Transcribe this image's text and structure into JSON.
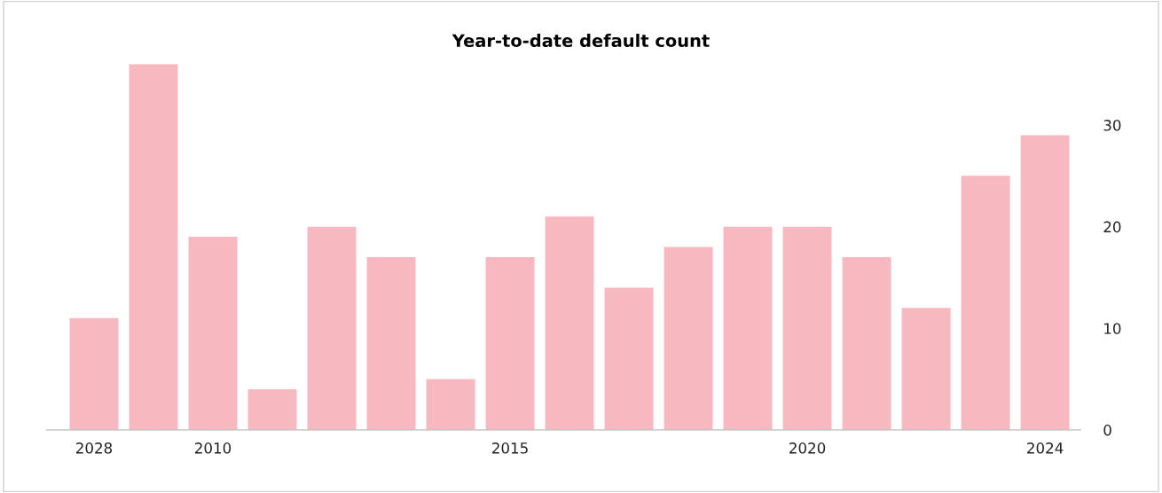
{
  "chart_data": {
    "type": "bar",
    "title": "Year-to-date default count",
    "categories": [
      "2028",
      null,
      "2010",
      null,
      null,
      null,
      null,
      "2015",
      null,
      null,
      null,
      null,
      "2020",
      null,
      null,
      null,
      "2024"
    ],
    "values": [
      11,
      36,
      19,
      4,
      20,
      17,
      5,
      17,
      21,
      14,
      18,
      20,
      20,
      17,
      12,
      25,
      29
    ],
    "color": "#f8b8c0",
    "ylim": [
      0,
      36
    ],
    "yticks": [
      0,
      10,
      20,
      30
    ],
    "grid": false,
    "legend": false
  }
}
